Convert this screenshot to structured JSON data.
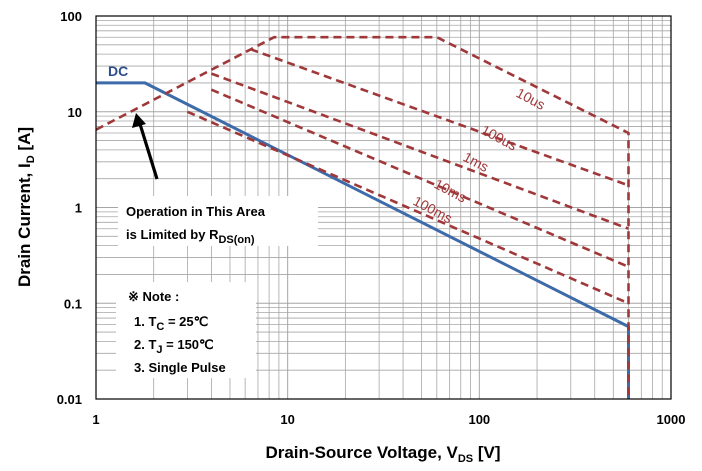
{
  "chart_data": {
    "type": "line",
    "x_scale": "log",
    "y_scale": "log",
    "xlim": [
      1,
      1000
    ],
    "ylim": [
      0.01,
      100
    ],
    "grid": true,
    "x_ticks": [
      "1",
      "10",
      "100",
      "1000"
    ],
    "y_ticks": [
      "0.01",
      "0.1",
      "1",
      "10",
      "100"
    ],
    "xlabel": {
      "main": "Drain-Source Voltage, V",
      "sub": "DS",
      "unit": " [V]"
    },
    "ylabel": {
      "main": "Drain Current, I",
      "sub": "D",
      "unit": " [A]"
    },
    "series": [
      {
        "name": "DC",
        "style": "solid",
        "color": "#3d6aa8",
        "points": [
          [
            1,
            20
          ],
          [
            1.8,
            20
          ],
          [
            600,
            0.057
          ],
          [
            600,
            0.01
          ]
        ]
      },
      {
        "name": "10us",
        "style": "dashed",
        "color": "#a0383a",
        "points": [
          [
            1,
            6.5
          ],
          [
            8.5,
            60
          ],
          [
            60,
            60
          ],
          [
            600,
            6
          ],
          [
            600,
            0.01
          ]
        ]
      },
      {
        "name": "100us",
        "style": "dashed",
        "color": "#a0383a",
        "points": [
          [
            6.4,
            45
          ],
          [
            600,
            1.7
          ]
        ]
      },
      {
        "name": "1ms",
        "style": "dashed",
        "color": "#a0383a",
        "points": [
          [
            4,
            25
          ],
          [
            600,
            0.6
          ]
        ]
      },
      {
        "name": "10ms",
        "style": "dashed",
        "color": "#a0383a",
        "points": [
          [
            4,
            17
          ],
          [
            600,
            0.24
          ]
        ]
      },
      {
        "name": "100ms",
        "style": "dashed",
        "color": "#a0383a",
        "points": [
          [
            3,
            10
          ],
          [
            600,
            0.1
          ]
        ]
      }
    ],
    "labels": {
      "dc": "DC",
      "us10": "10us",
      "us100": "100us",
      "ms1": "1ms",
      "ms10": "10ms",
      "ms100": "100ms"
    },
    "annotation_rds": {
      "line1": "Operation in This Area",
      "line2": "is Limited by R",
      "sub": "DS(on)",
      "arrow_target": [
        1.7,
        9.0
      ]
    },
    "note": {
      "title": "※ Note :",
      "item1_prefix": "1. T",
      "item1_sub": "C",
      "item1_value": " = 25℃",
      "item2_prefix": "2. T",
      "item2_sub": "J",
      "item2_value": " = 150℃",
      "item3": "3. Single Pulse"
    },
    "colors": {
      "dc": "#3d6aa8",
      "pulse": "#a0383a",
      "grid": "#a6a6a6",
      "frame": "#000000"
    }
  }
}
